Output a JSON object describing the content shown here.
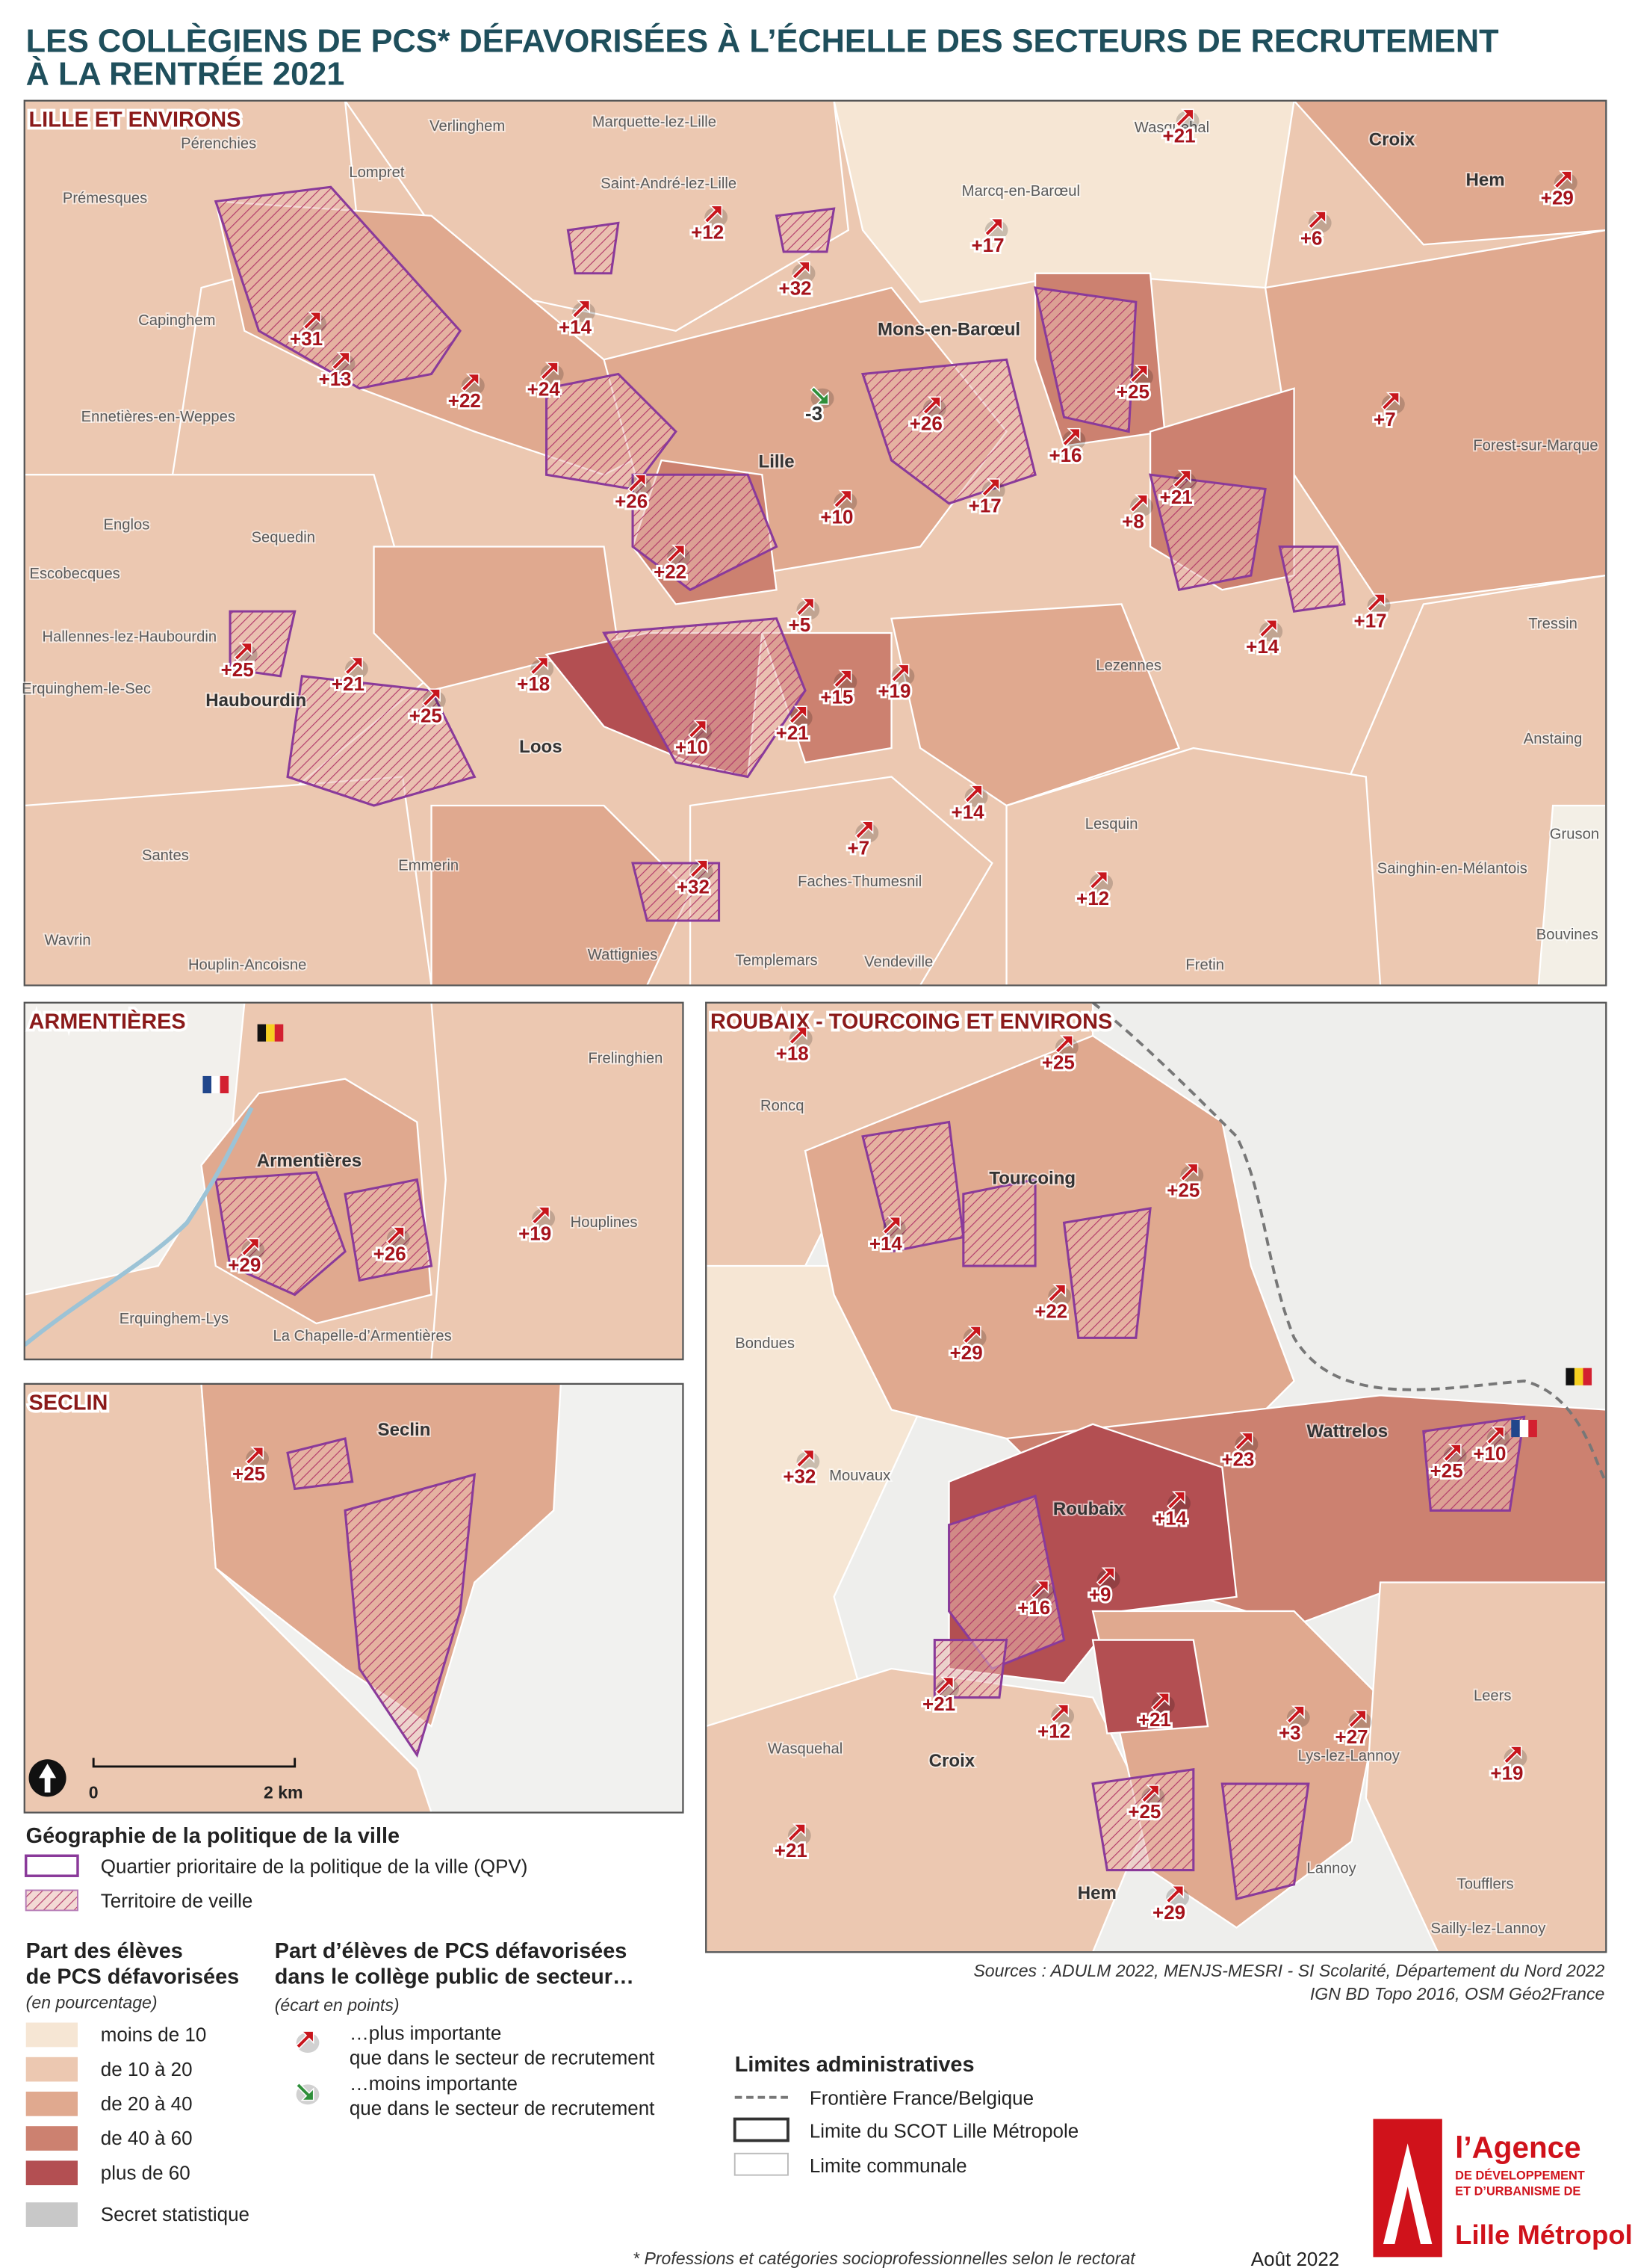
{
  "header": {
    "title_lines": [
      "LES COLLÈGIENS DE PCS* DÉFAVORISÉES À L’ÉCHELLE DES SECTEURS DE RECRUTEMENT",
      "À LA RENTRÉE 2021"
    ]
  },
  "panels": [
    {
      "title": "LILLE ET ENVIRONS",
      "places": [
        "Pérenchies",
        "Verlinghem",
        "Marquette-lez-Lille",
        "Wasquehal",
        "Croix",
        "Hem",
        "Lompret",
        "Saint-André-lez-Lille",
        "Prémesques",
        "Marcq-en-Barœul",
        "Capinghem",
        "Mons-en-Barœul",
        "Ennetières-en-Weppes",
        "Lille",
        "Forest-sur-Marque",
        "Englos",
        "Sequedin",
        "Escobecques",
        "Tressin",
        "Hallennes-lez-Haubourdin",
        "Lezennes",
        "Erquinghem-le-Sec",
        "Haubourdin",
        "Loos",
        "Anstaing",
        "Lesquin",
        "Gruson",
        "Santes",
        "Emmerin",
        "Sainghin-en-Mélantois",
        "Faches-Thumesnil",
        "Wavrin",
        "Bouvines",
        "Houplin-Ancoisne",
        "Wattignies",
        "Templemars",
        "Vendeville",
        "Fretin"
      ],
      "gaps": [
        "+21",
        "+29",
        "+12",
        "+17",
        "+6",
        "+32",
        "+14",
        "+31",
        "+13",
        "+22",
        "+24",
        "+25",
        "+7",
        "-3",
        "+26",
        "+16",
        "+17",
        "+21",
        "+8",
        "+26",
        "+10",
        "+22",
        "+5",
        "+17",
        "+14",
        "+25",
        "+21",
        "+18",
        "+15",
        "+19",
        "+25",
        "+21",
        "+10",
        "+14",
        "+7",
        "+12",
        "+32"
      ]
    },
    {
      "title": "ARMENTIÈRES",
      "places": [
        "Frelinghien",
        "Armentières",
        "Houplines",
        "Erquinghem-Lys",
        "La Chapelle-d’Armentières"
      ],
      "gaps": [
        "+19",
        "+29",
        "+26"
      ]
    },
    {
      "title": "SECLIN",
      "places": [
        "Seclin"
      ],
      "gaps": [
        "+25"
      ]
    },
    {
      "title": "ROUBAIX - TOURCOING ET ENVIRONS",
      "places": [
        "Roncq",
        "Tourcoing",
        "Bondues",
        "Wattrelos",
        "Mouvaux",
        "Roubaix",
        "Leers",
        "Wasquehal",
        "Croix",
        "Lys-lez-Lannoy",
        "Lannoy",
        "Toufflers",
        "Hem",
        "Sailly-lez-Lannoy"
      ],
      "gaps": [
        "+18",
        "+25",
        "+25",
        "+14",
        "+22",
        "+29",
        "+23",
        "+25",
        "+10",
        "+32",
        "+14",
        "+16",
        "+9",
        "+21",
        "+12",
        "+21",
        "+3",
        "+27",
        "+19",
        "+25",
        "+21",
        "+29"
      ]
    }
  ],
  "legend": {
    "scale": [
      "0",
      "2 km"
    ],
    "geography": {
      "title": "Géographie de la politique de la ville",
      "items": [
        "Quartier prioritaire de la politique de la ville (QPV)",
        "Territoire de veille"
      ]
    },
    "share": {
      "title_lines": [
        "Part des élèves",
        "de PCS défavorisées"
      ],
      "unit": "(en pourcentage)",
      "classes": [
        {
          "label": "moins de 10",
          "color": "#f6e6d4"
        },
        {
          "label": "de 10 à 20",
          "color": "#ecc8b1"
        },
        {
          "label": "de 20 à 40",
          "color": "#e0a98f"
        },
        {
          "label": "de 40 à 60",
          "color": "#cc8170"
        },
        {
          "label": "plus de 60",
          "color": "#b34f52"
        },
        {
          "label": "Secret statistique",
          "color": "#c8c8c8"
        }
      ]
    },
    "gap": {
      "title_lines": [
        "Part d’élèves de PCS défavorisées",
        "dans le collège public de secteur…"
      ],
      "unit": "(écart en points)",
      "items": [
        {
          "lines": [
            "…plus importante",
            "que dans le secteur de recrutement"
          ],
          "color": "#c8161d"
        },
        {
          "lines": [
            "…moins importante",
            "que dans le secteur de recrutement"
          ],
          "color": "#2f8f3a"
        }
      ]
    },
    "limits": {
      "title": "Limites administratives",
      "items": [
        "Frontière France/Belgique",
        "Limite du SCOT Lille Métropole",
        "Limite communale"
      ]
    }
  },
  "sources": [
    "Sources : ADULM 2022, MENJS-MESRI - SI Scolarité, Département du Nord 2022",
    "IGN BD Topo 2016, OSM Géo2France"
  ],
  "footnote": "* Professions et catégories socioprofessionnelles selon le rectorat",
  "date": "Août 2022",
  "logo": [
    "l’Agence",
    "DE DÉVELOPPEMENT",
    "ET D’URBANISME DE",
    "Lille Métropole"
  ]
}
